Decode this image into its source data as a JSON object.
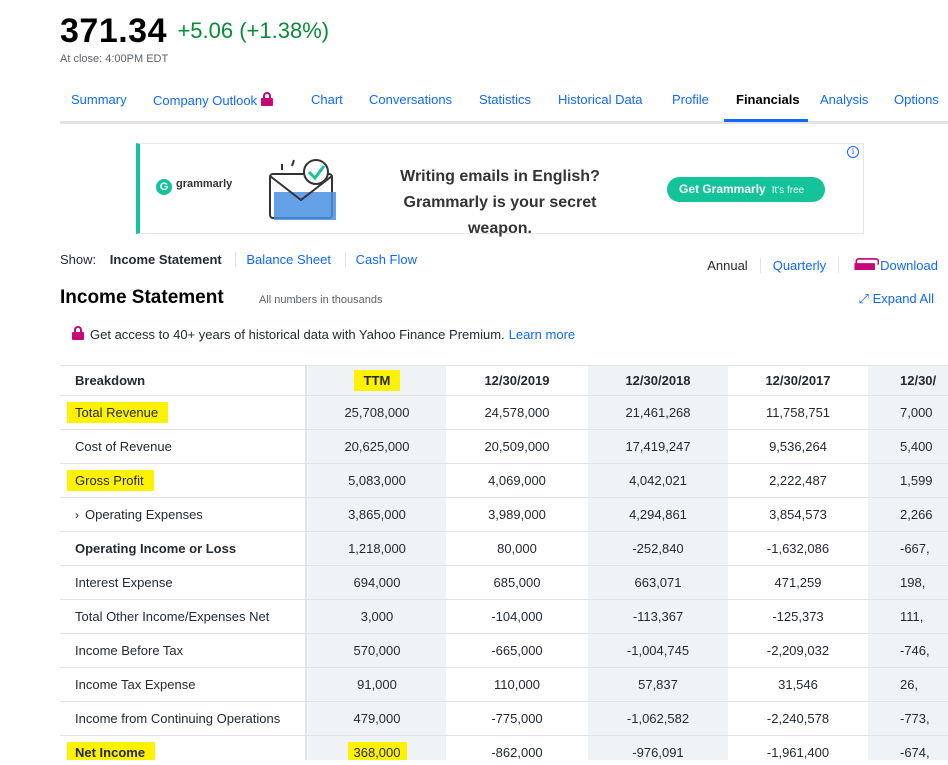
{
  "quote": {
    "price": "371.34",
    "change": "+5.06 (+1.38%)",
    "close_time": "At close: 4:00PM EDT"
  },
  "tabs": [
    {
      "label": "Summary"
    },
    {
      "label": "Company Outlook"
    },
    {
      "label": "Chart"
    },
    {
      "label": "Conversations"
    },
    {
      "label": "Statistics"
    },
    {
      "label": "Historical Data"
    },
    {
      "label": "Profile"
    },
    {
      "label": "Financials"
    },
    {
      "label": "Analysis"
    },
    {
      "label": "Options"
    }
  ],
  "ad": {
    "brand": "grammarly",
    "headline_1": "Writing emails in English?",
    "headline_2": "Grammarly is your secret weapon.",
    "cta": "Get Grammarly",
    "cta_note": "It's free",
    "info": "i"
  },
  "show": {
    "label": "Show:",
    "options": [
      "Income Statement",
      "Balance Sheet",
      "Cash Flow"
    ]
  },
  "period": {
    "annual": "Annual",
    "quarterly": "Quarterly",
    "download": "Download"
  },
  "section": {
    "title": "Income Statement",
    "note": "All numbers in thousands",
    "expand": "Expand All"
  },
  "promo": {
    "text": "Get access to 40+ years of historical data with Yahoo Finance Premium.",
    "link": "Learn more"
  },
  "table": {
    "header": {
      "label": "Breakdown",
      "columns": [
        "TTM",
        "12/30/2019",
        "12/30/2018",
        "12/30/2017",
        "12/30/"
      ]
    },
    "rows": [
      {
        "label": "Total Revenue",
        "values": [
          "25,708,000",
          "24,578,000",
          "21,461,268",
          "11,758,751",
          "7,000"
        ]
      },
      {
        "label": "Cost of Revenue",
        "values": [
          "20,625,000",
          "20,509,000",
          "17,419,247",
          "9,536,264",
          "5,400"
        ]
      },
      {
        "label": "Gross Profit",
        "values": [
          "5,083,000",
          "4,069,000",
          "4,042,021",
          "2,222,487",
          "1,599"
        ]
      },
      {
        "label": "Operating Expenses",
        "values": [
          "3,865,000",
          "3,989,000",
          "4,294,861",
          "3,854,573",
          "2,266"
        ]
      },
      {
        "label": "Operating Income or Loss",
        "values": [
          "1,218,000",
          "80,000",
          "-252,840",
          "-1,632,086",
          "-667,"
        ]
      },
      {
        "label": "Interest Expense",
        "values": [
          "694,000",
          "685,000",
          "663,071",
          "471,259",
          "198,"
        ]
      },
      {
        "label": "Total Other Income/Expenses Net",
        "values": [
          "3,000",
          "-104,000",
          "-113,367",
          "-125,373",
          "111,"
        ]
      },
      {
        "label": "Income Before Tax",
        "values": [
          "570,000",
          "-665,000",
          "-1,004,745",
          "-2,209,032",
          "-746,"
        ]
      },
      {
        "label": "Income Tax Expense",
        "values": [
          "91,000",
          "110,000",
          "57,837",
          "31,546",
          "26,"
        ]
      },
      {
        "label": "Income from Continuing Operations",
        "values": [
          "479,000",
          "-775,000",
          "-1,062,582",
          "-2,240,578",
          "-773,"
        ]
      },
      {
        "label": "Net Income",
        "values": [
          "368,000",
          "-862,000",
          "-976,091",
          "-1,961,400",
          "-674,"
        ]
      }
    ]
  },
  "colors": {
    "accent": "#0f69ff",
    "positive": "#0b8a3a",
    "highlight": "#fff200",
    "grammarly": "#15c39a",
    "premium": "#c7087b"
  }
}
